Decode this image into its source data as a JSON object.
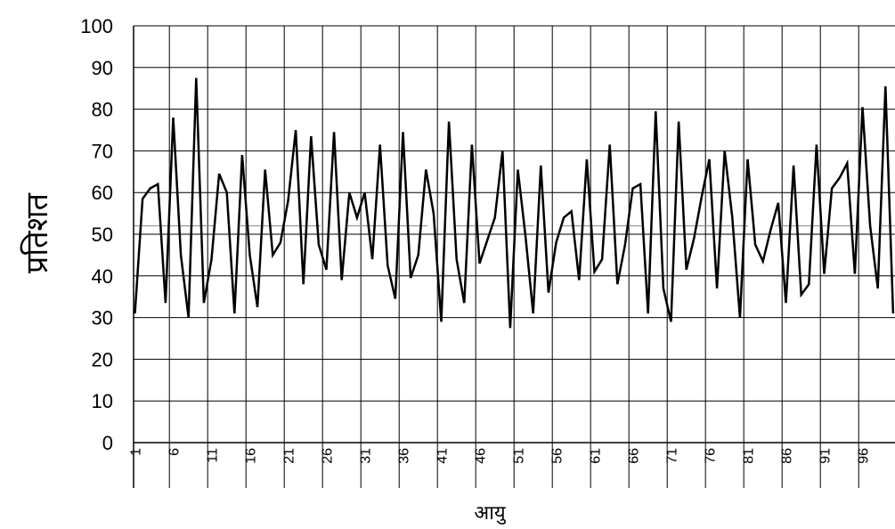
{
  "chart_data": {
    "type": "line",
    "ylabel": "प्रतिशत",
    "xlabel": "आयु",
    "ylim": [
      0,
      100
    ],
    "y_ticks": [
      0,
      10,
      20,
      30,
      40,
      50,
      60,
      70,
      80,
      90,
      100
    ],
    "x_tick_labels": [
      "1",
      "6",
      "11",
      "16",
      "21",
      "26",
      "31",
      "36",
      "41",
      "46",
      "51",
      "56",
      "61",
      "66",
      "71",
      "76",
      "81",
      "86",
      "91",
      "96"
    ],
    "grid": true,
    "reference_line": 52,
    "x": [
      1,
      2,
      3,
      4,
      5,
      6,
      7,
      8,
      9,
      10,
      11,
      12,
      13,
      14,
      15,
      16,
      17,
      18,
      19,
      20,
      21,
      22,
      23,
      24,
      25,
      26,
      27,
      28,
      29,
      30,
      31,
      32,
      33,
      34,
      35,
      36,
      37,
      38,
      39,
      40,
      41,
      42,
      43,
      44,
      45,
      46,
      47,
      48,
      49,
      50,
      51,
      52,
      53,
      54,
      55,
      56,
      57,
      58,
      59,
      60,
      61,
      62,
      63,
      64,
      65,
      66,
      67,
      68,
      69,
      70,
      71,
      72,
      73,
      74,
      75,
      76,
      77,
      78,
      79,
      80,
      81,
      82,
      83,
      84,
      85,
      86,
      87,
      88,
      89,
      90,
      91,
      92,
      93,
      94,
      95,
      96,
      97,
      98,
      99,
      100
    ],
    "series": [
      {
        "values": [
          31,
          58.5,
          61,
          62,
          33.5,
          78,
          45,
          30,
          87.5,
          33.5,
          44,
          64.5,
          60,
          31,
          69,
          45,
          32.5,
          65.5,
          45,
          48,
          58,
          75,
          38,
          73.5,
          47.5,
          41.5,
          74.5,
          39,
          60,
          54,
          60,
          44,
          71.5,
          42.5,
          34.5,
          74.5,
          39.5,
          45,
          65.5,
          55,
          29,
          77,
          44,
          33.5,
          71.5,
          43,
          48.5,
          54,
          70,
          27.5,
          65.5,
          49.5,
          31,
          66.5,
          36,
          48,
          54,
          55.5,
          39,
          68,
          41,
          44,
          71.5,
          38,
          47.5,
          61,
          62,
          31,
          79.5,
          37,
          29,
          77,
          41.5,
          49,
          59,
          68,
          37,
          70,
          54,
          30,
          68,
          47.5,
          43.5,
          51,
          57.5,
          33.5,
          66.5,
          35.5,
          38,
          71.5,
          40.5,
          61,
          63.5,
          67,
          40.5,
          80.5,
          52,
          37,
          85.5,
          31
        ]
      }
    ]
  }
}
